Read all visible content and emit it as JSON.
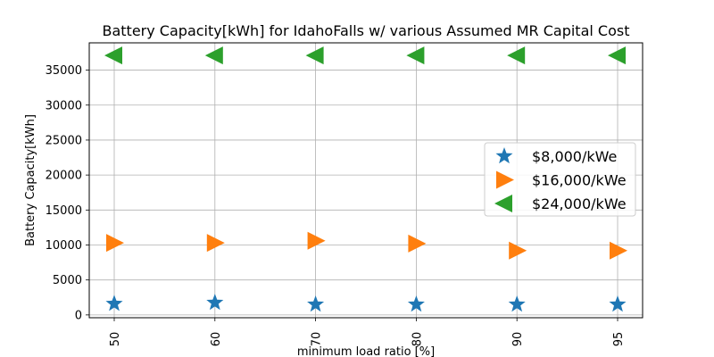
{
  "chart_data": {
    "type": "scatter",
    "title": "Battery Capacity[kWh] for IdahoFalls w/ various Assumed MR Capital Cost",
    "xlabel": "minimum load ratio [%]",
    "ylabel": "Battery Capacity[kWh]",
    "categories": [
      "50",
      "60",
      "70",
      "80",
      "90",
      "95"
    ],
    "yticks": [
      "0",
      "5000",
      "10000",
      "15000",
      "20000",
      "25000",
      "30000",
      "35000"
    ],
    "ylim": [
      -400,
      38900
    ],
    "grid": true,
    "legend_position": "center-right",
    "series": [
      {
        "name": "$8,000/kWe",
        "marker": "star",
        "color": "#1f77b4",
        "values": [
          1600,
          1750,
          1500,
          1500,
          1500,
          1500
        ]
      },
      {
        "name": "$16,000/kWe",
        "marker": "triangle-right",
        "color": "#ff7f0e",
        "values": [
          10300,
          10300,
          10600,
          10200,
          9200,
          9200
        ]
      },
      {
        "name": "$24,000/kWe",
        "marker": "triangle-left",
        "color": "#2ca02c",
        "values": [
          37100,
          37100,
          37100,
          37100,
          37100,
          37100
        ]
      }
    ]
  }
}
